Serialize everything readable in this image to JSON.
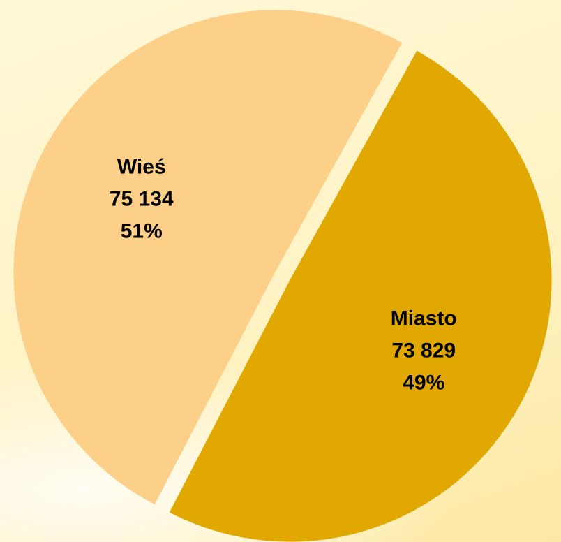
{
  "chart_data": {
    "type": "pie",
    "categories": [
      "Miasto",
      "Wieś"
    ],
    "values": [
      73829,
      75134
    ],
    "value_labels": [
      "73 829",
      "75 134"
    ],
    "percentages": [
      49,
      51
    ],
    "percentage_labels": [
      "49%",
      "51%"
    ],
    "colors": [
      "#e0a800",
      "#fdd089"
    ],
    "exploded": true
  }
}
